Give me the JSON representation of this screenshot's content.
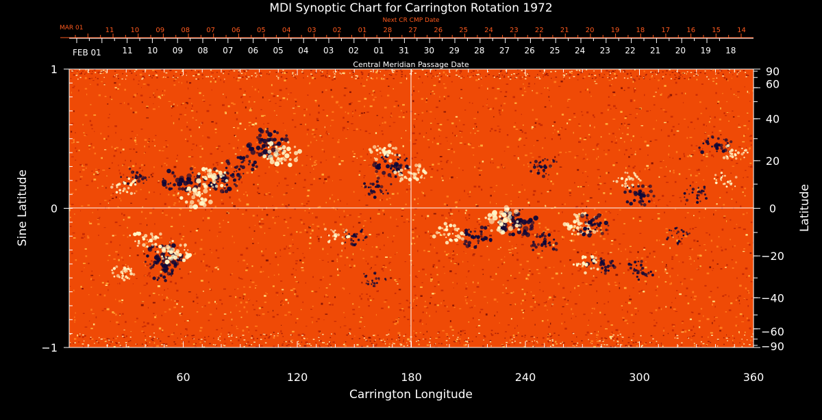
{
  "chart_data": {
    "type": "heatmap",
    "title": "MDI Synoptic Chart for Carrington Rotation 1972",
    "xlabel": "Carrington Longitude",
    "ylabel_left": "Sine Latitude",
    "ylabel_right": "Latitude",
    "xlim": [
      0,
      360
    ],
    "ylim": [
      -1,
      1
    ],
    "x_ticks": [
      60,
      120,
      180,
      240,
      300,
      360
    ],
    "y_left_ticks": [
      {
        "value": 1,
        "label": "1"
      },
      {
        "value": 0,
        "label": "0"
      },
      {
        "value": -1,
        "label": "−1"
      }
    ],
    "y_right_ticks": [
      90,
      60,
      40,
      20,
      0,
      -20,
      -40,
      -60,
      -90
    ],
    "next_cr_axis": {
      "label": "Next CR CMP Date",
      "start_label": "MAR 01",
      "labels": [
        "11",
        "10",
        "09",
        "08",
        "07",
        "06",
        "05",
        "04",
        "03",
        "02",
        "01",
        "28",
        "27",
        "26",
        "25",
        "24",
        "23",
        "22",
        "21",
        "20",
        "19",
        "18",
        "17",
        "16",
        "15",
        "14"
      ]
    },
    "cmp_axis": {
      "label": "Central Meridian Passage Date",
      "start_label": "FEB 01",
      "labels": [
        "11",
        "10",
        "09",
        "08",
        "07",
        "06",
        "05",
        "04",
        "03",
        "02",
        "01",
        "31",
        "30",
        "29",
        "28",
        "27",
        "26",
        "25",
        "24",
        "23",
        "22",
        "21",
        "20",
        "19",
        "18"
      ]
    },
    "colors": {
      "background_field": "#ef4a06",
      "positive_polarity": "#fff7c8",
      "negative_polarity": "#0e0838",
      "axis": "#ffffff",
      "next_cr_color": "#ff5a1e"
    },
    "regions": [
      {
        "lon": 105,
        "sinlat": 0.47,
        "polarity": "negative",
        "strength": 1.0
      },
      {
        "lon": 112,
        "sinlat": 0.4,
        "polarity": "positive",
        "strength": 0.9
      },
      {
        "lon": 60,
        "sinlat": 0.2,
        "polarity": "negative",
        "strength": 0.9
      },
      {
        "lon": 68,
        "sinlat": 0.1,
        "polarity": "positive",
        "strength": 0.9
      },
      {
        "lon": 80,
        "sinlat": 0.2,
        "polarity": "negative",
        "strength": 0.8
      },
      {
        "lon": 76,
        "sinlat": 0.22,
        "polarity": "positive",
        "strength": 0.7
      },
      {
        "lon": 90,
        "sinlat": 0.3,
        "polarity": "negative",
        "strength": 0.6
      },
      {
        "lon": 35,
        "sinlat": 0.22,
        "polarity": "negative",
        "strength": 0.5
      },
      {
        "lon": 30,
        "sinlat": 0.15,
        "polarity": "positive",
        "strength": 0.4
      },
      {
        "lon": 170,
        "sinlat": 0.3,
        "polarity": "negative",
        "strength": 0.8
      },
      {
        "lon": 166,
        "sinlat": 0.4,
        "polarity": "positive",
        "strength": 0.6
      },
      {
        "lon": 180,
        "sinlat": 0.25,
        "polarity": "positive",
        "strength": 0.6
      },
      {
        "lon": 162,
        "sinlat": 0.15,
        "polarity": "negative",
        "strength": 0.5
      },
      {
        "lon": 236,
        "sinlat": -0.1,
        "polarity": "negative",
        "strength": 1.0
      },
      {
        "lon": 229,
        "sinlat": -0.09,
        "polarity": "positive",
        "strength": 1.0
      },
      {
        "lon": 214,
        "sinlat": -0.2,
        "polarity": "negative",
        "strength": 0.7
      },
      {
        "lon": 200,
        "sinlat": -0.18,
        "polarity": "positive",
        "strength": 0.6
      },
      {
        "lon": 50,
        "sinlat": -0.35,
        "polarity": "negative",
        "strength": 0.9
      },
      {
        "lon": 55,
        "sinlat": -0.32,
        "polarity": "positive",
        "strength": 0.8
      },
      {
        "lon": 40,
        "sinlat": -0.2,
        "polarity": "positive",
        "strength": 0.6
      },
      {
        "lon": 50,
        "sinlat": -0.45,
        "polarity": "negative",
        "strength": 0.6
      },
      {
        "lon": 30,
        "sinlat": -0.45,
        "polarity": "positive",
        "strength": 0.5
      },
      {
        "lon": 250,
        "sinlat": -0.25,
        "polarity": "negative",
        "strength": 0.6
      },
      {
        "lon": 270,
        "sinlat": -0.12,
        "polarity": "positive",
        "strength": 0.7
      },
      {
        "lon": 275,
        "sinlat": -0.12,
        "polarity": "negative",
        "strength": 0.7
      },
      {
        "lon": 280,
        "sinlat": -0.4,
        "polarity": "negative",
        "strength": 0.5
      },
      {
        "lon": 272,
        "sinlat": -0.4,
        "polarity": "positive",
        "strength": 0.5
      },
      {
        "lon": 300,
        "sinlat": -0.45,
        "polarity": "negative",
        "strength": 0.5
      },
      {
        "lon": 250,
        "sinlat": 0.3,
        "polarity": "negative",
        "strength": 0.5
      },
      {
        "lon": 300,
        "sinlat": 0.1,
        "polarity": "negative",
        "strength": 0.6
      },
      {
        "lon": 293,
        "sinlat": 0.2,
        "polarity": "positive",
        "strength": 0.4
      },
      {
        "lon": 340,
        "sinlat": 0.45,
        "polarity": "negative",
        "strength": 0.6
      },
      {
        "lon": 350,
        "sinlat": 0.4,
        "polarity": "positive",
        "strength": 0.4
      },
      {
        "lon": 330,
        "sinlat": 0.1,
        "polarity": "negative",
        "strength": 0.4
      },
      {
        "lon": 345,
        "sinlat": 0.2,
        "polarity": "positive",
        "strength": 0.3
      },
      {
        "lon": 150,
        "sinlat": -0.2,
        "polarity": "negative",
        "strength": 0.4
      },
      {
        "lon": 140,
        "sinlat": -0.2,
        "polarity": "positive",
        "strength": 0.4
      },
      {
        "lon": 160,
        "sinlat": -0.5,
        "polarity": "negative",
        "strength": 0.3
      },
      {
        "lon": 320,
        "sinlat": -0.2,
        "polarity": "negative",
        "strength": 0.3
      }
    ]
  }
}
